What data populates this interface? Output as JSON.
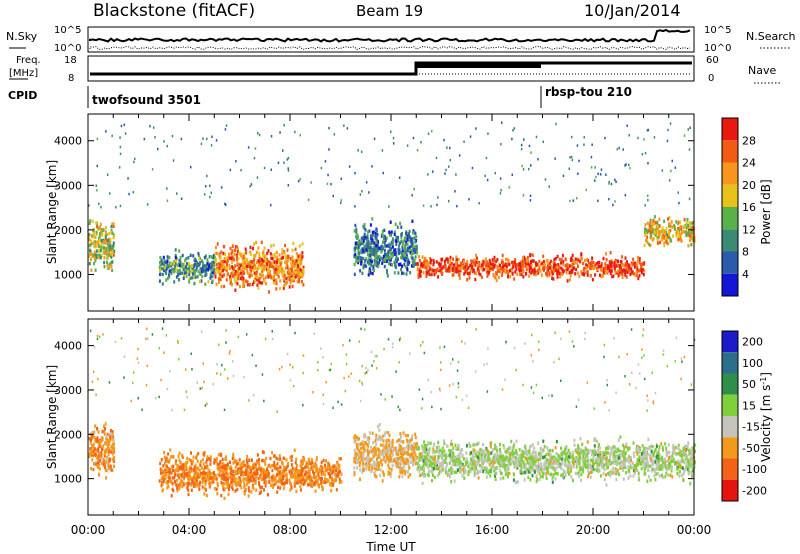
{
  "header": {
    "station": "Blackstone (fitACF)",
    "beam": "Beam 19",
    "date": "10/Jan/2014"
  },
  "sky_panel": {
    "left_label": "N.Sky",
    "right_label": "N.Search",
    "left_ticks": [
      "10^5",
      "10^0"
    ],
    "right_ticks": [
      "10^5",
      "10^0"
    ]
  },
  "freq_panel": {
    "left_label_1": "Freq.",
    "left_label_2": "[MHz]",
    "left_ticks": [
      "18",
      "8"
    ],
    "right_label": "Nave",
    "right_ticks": [
      "60",
      "0"
    ]
  },
  "cpid": {
    "label": "CPID",
    "programs": [
      {
        "name": "twofsound 3501",
        "start_hour": 0
      },
      {
        "name": "rbsp-tou 210",
        "start_hour": 18
      }
    ]
  },
  "colors": {
    "power_scale": [
      "#1515d6",
      "#2a5caa",
      "#3a8a74",
      "#5ab04a",
      "#e6c21a",
      "#f7951e",
      "#f25a15",
      "#e81a10"
    ],
    "velocity_scale": [
      "#1b1bc9",
      "#2b6f8a",
      "#2f8f4a",
      "#7fd03b",
      "#c4c4bc",
      "#f39a1c",
      "#f26317",
      "#e61410"
    ],
    "ground_scatter": "#c4c4bc"
  },
  "chart_data": [
    {
      "type": "heatmap",
      "panel": "power",
      "xlabel": "Time UT",
      "ylabel": "Slant Range [km]",
      "xlim": [
        0,
        24
      ],
      "ylim": [
        180,
        4600
      ],
      "x_ticks": [
        "00:00",
        "04:00",
        "08:00",
        "12:00",
        "16:00",
        "20:00",
        "00:00"
      ],
      "y_ticks": [
        1000,
        2000,
        3000,
        4000
      ],
      "colorbar": {
        "label": "Power [dB]",
        "ticks": [
          4,
          8,
          12,
          16,
          20,
          24,
          28
        ],
        "range": [
          0,
          30
        ]
      },
      "echo_regions": [
        {
          "t_start": 0.0,
          "t_end": 1.0,
          "r_low": 900,
          "r_high": 2400,
          "level": 16
        },
        {
          "t_start": 2.8,
          "t_end": 5.0,
          "r_low": 700,
          "r_high": 1600,
          "level": 10
        },
        {
          "t_start": 5.0,
          "t_end": 8.5,
          "r_low": 500,
          "r_high": 1800,
          "level": 22
        },
        {
          "t_start": 10.5,
          "t_end": 13.0,
          "r_low": 800,
          "r_high": 2300,
          "level": 8
        },
        {
          "t_start": 13.0,
          "t_end": 22.0,
          "r_low": 800,
          "r_high": 1500,
          "level": 26
        },
        {
          "t_start": 22.0,
          "t_end": 24.0,
          "r_low": 1500,
          "r_high": 2400,
          "level": 18
        }
      ]
    },
    {
      "type": "heatmap",
      "panel": "velocity",
      "xlabel": "Time UT",
      "ylabel": "Slant Range [km]",
      "xlim": [
        0,
        24
      ],
      "ylim": [
        180,
        4600
      ],
      "x_ticks": [
        "00:00",
        "04:00",
        "08:00",
        "12:00",
        "16:00",
        "20:00",
        "00:00"
      ],
      "y_ticks": [
        1000,
        2000,
        3000,
        4000
      ],
      "colorbar": {
        "label": "Velocity [m s^-1]",
        "ticks": [
          200,
          100,
          50,
          15,
          -15,
          -50,
          -100,
          -200
        ],
        "range": [
          -250,
          250
        ]
      },
      "echo_regions": [
        {
          "t_start": 0.0,
          "t_end": 1.0,
          "r_low": 900,
          "r_high": 2400,
          "level": -60
        },
        {
          "t_start": 2.8,
          "t_end": 10.0,
          "r_low": 500,
          "r_high": 1700,
          "level": -70
        },
        {
          "t_start": 10.5,
          "t_end": 13.0,
          "r_low": 800,
          "r_high": 2300,
          "level": -40
        },
        {
          "t_start": 13.0,
          "t_end": 24.0,
          "r_low": 800,
          "r_high": 2000,
          "level": 0
        }
      ]
    }
  ]
}
